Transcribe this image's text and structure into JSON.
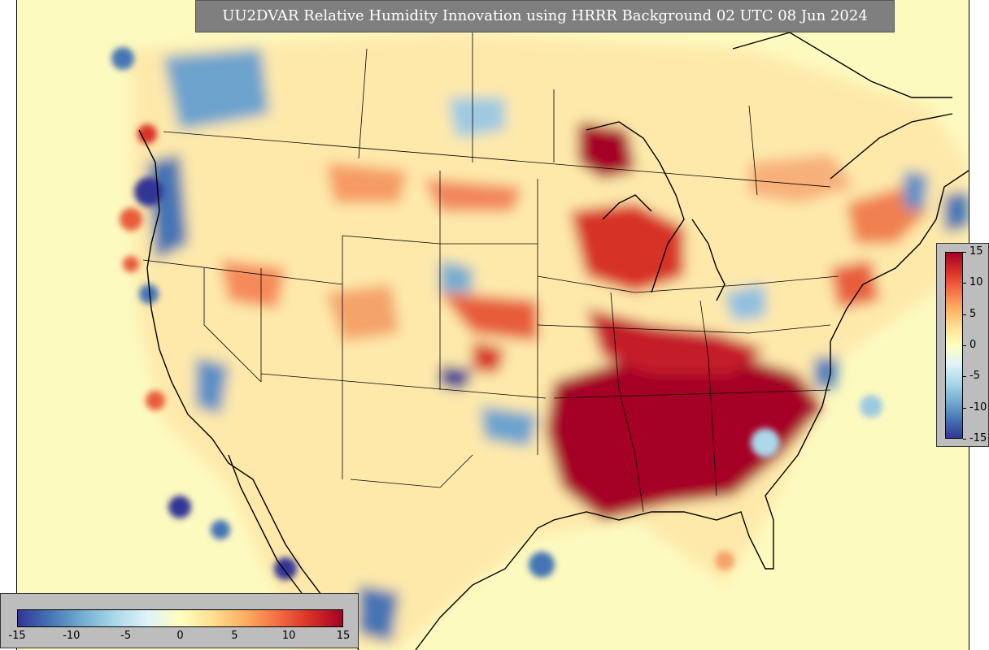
{
  "title": "UU2DVAR Relative Humidity Innovation using HRRR Background 02 UTC 08 Jun 2024",
  "colorbar": {
    "ticks": [
      "15",
      "10",
      "5",
      "0",
      "-5",
      "-10",
      "-15"
    ],
    "ticks_horizontal": [
      "-15",
      "-10",
      "-5",
      "0",
      "5",
      "10",
      "15"
    ],
    "range": [
      -15,
      15
    ],
    "colors": [
      "#313695",
      "#4575b4",
      "#74add1",
      "#abd9e9",
      "#e0f3f8",
      "#ffffbf",
      "#fee090",
      "#fdae61",
      "#f46d43",
      "#d73027",
      "#a50026"
    ]
  },
  "map": {
    "background_color": "#fdfac0",
    "positive_color": "#a50026",
    "negative_color": "#313695"
  }
}
